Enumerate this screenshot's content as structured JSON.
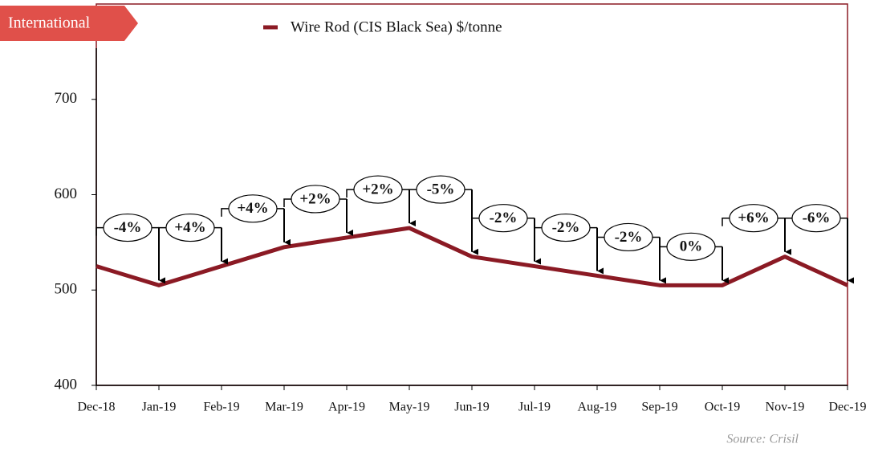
{
  "tag": "International",
  "source": "Source: Crisil",
  "chart_data": {
    "type": "line",
    "categories": [
      "Dec-18",
      "Jan-19",
      "Feb-19",
      "Mar-19",
      "Apr-19",
      "May-19",
      "Jun-19",
      "Jul-19",
      "Aug-19",
      "Sep-19",
      "Oct-19",
      "Nov-19",
      "Dec-19"
    ],
    "series": [
      {
        "name": "Wire Rod (CIS Black Sea) $/tonne",
        "color": "#8b1a24",
        "values": [
          525,
          505,
          525,
          545,
          555,
          565,
          535,
          525,
          515,
          505,
          505,
          535,
          505
        ]
      }
    ],
    "annotations": [
      "-4%",
      "+4%",
      "+4%",
      "+2%",
      "+2%",
      "-5%",
      "-2%",
      "-2%",
      "-2%",
      "0%",
      "+6%",
      "-6%"
    ],
    "ylim": [
      400,
      800
    ],
    "yticks": [
      400,
      500,
      600,
      700
    ]
  }
}
